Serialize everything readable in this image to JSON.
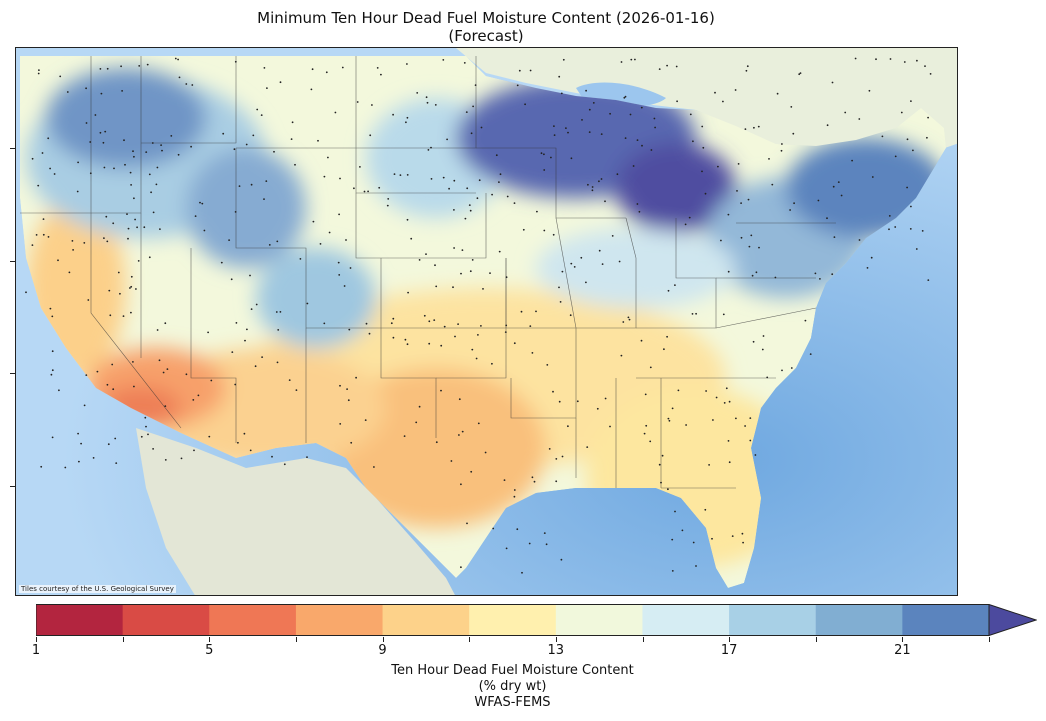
{
  "title": {
    "line1": "Minimum Ten Hour Dead Fuel Moisture Content (2026-01-16)",
    "line2": "(Forecast)"
  },
  "map": {
    "attribution": "Tiles courtesy of the U.S. Geological Survey",
    "legend_color_scale": [
      "#b3253f",
      "#d94b45",
      "#ef7755",
      "#f9a86b",
      "#fdd28a",
      "#fff0ae",
      "#f1f8dc",
      "#d6edf3",
      "#a8d0e6",
      "#81aed2",
      "#5b84be",
      "#4c4a9e"
    ],
    "base_colors": {
      "ocean": "#a9cff2",
      "land": "#e6ead8",
      "canada": "#e9efdc"
    }
  },
  "colorbar": {
    "tick_labels": [
      "1",
      "5",
      "9",
      "13",
      "17",
      "21"
    ],
    "caption_line1": "Ten Hour Dead Fuel Moisture Content",
    "caption_line2": "(% dry wt)",
    "caption_line3": "WFAS-FEMS"
  }
}
